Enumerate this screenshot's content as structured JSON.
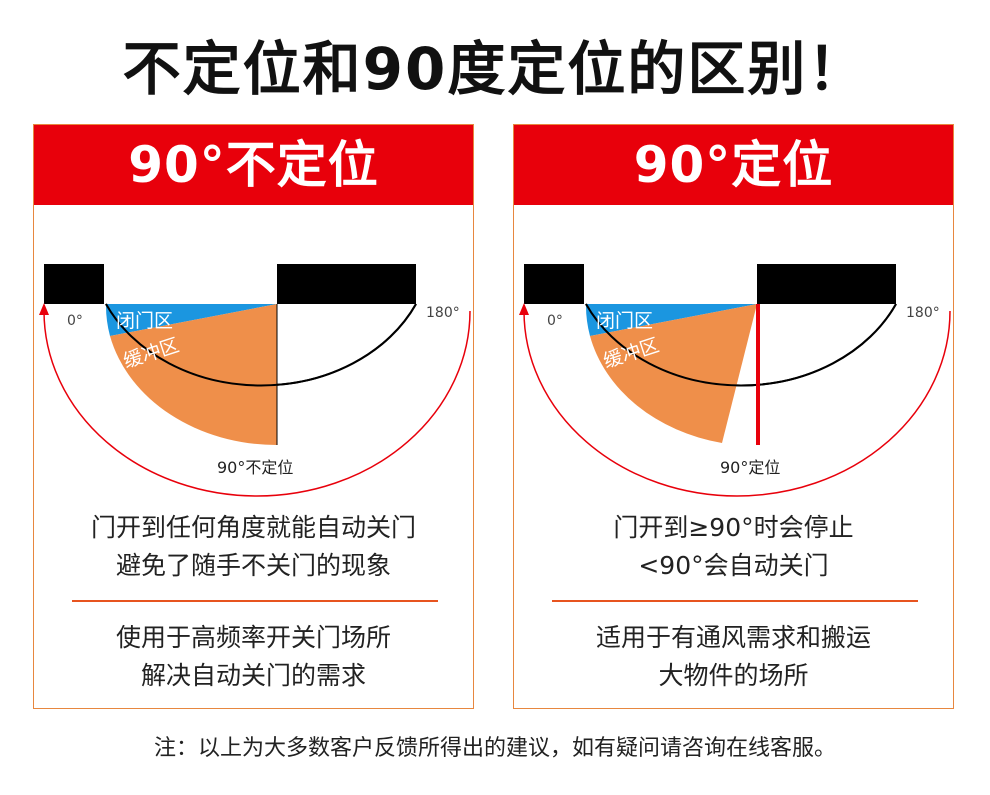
{
  "title": "不定位和90度定位的区别！",
  "footnote": "注：以上为大多数客户反馈所得出的建议，如有疑问请咨询在线客服。",
  "colors": {
    "header_red": "#e8000b",
    "closing_zone_blue": "#1b96e0",
    "buffer_zone_orange": "#ef8f4a",
    "arc_red": "#e8000b",
    "divider": "#e7541f"
  },
  "panels": [
    {
      "header": "90°不定位",
      "zone_close": "闭门区",
      "zone_buffer": "缓冲区",
      "label_0": "0°",
      "label_180": "180°",
      "label_90": "90°不定位",
      "desc_line1": "门开到任何角度就能自动关门",
      "desc_line2": "避免了随手不关门的现象",
      "use_line1": "使用于高频率开关门场所",
      "use_line2": "解决自动关门的需求"
    },
    {
      "header": "90°定位",
      "zone_close": "闭门区",
      "zone_buffer": "缓冲区",
      "label_0": "0°",
      "label_180": "180°",
      "label_90": "90°定位",
      "desc_line1": "门开到≥90°时会停止",
      "desc_line2": "<90°会自动关门",
      "use_line1": "适用于有通风需求和搬运",
      "use_line2": "大物件的场所"
    }
  ]
}
